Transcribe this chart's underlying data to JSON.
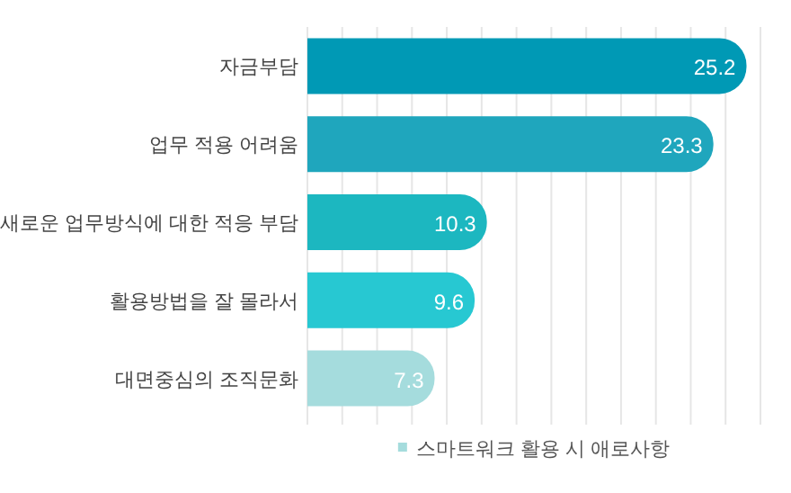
{
  "chart_data": {
    "type": "bar",
    "orientation": "horizontal",
    "categories": [
      "자금부담",
      "업무 적용 어려움",
      "새로운 업무방식에 대한 적응 부담",
      "활용방법을 잘 몰라서",
      "대면중심의 조직문화"
    ],
    "series": [
      {
        "name": "스마트워크 활용 시 애로사항",
        "color": "#a5dcdd",
        "colors": [
          "#0099b5",
          "#1fa6bd",
          "#1cb7c0",
          "#27c8d2",
          "#a5dcdd"
        ],
        "values": [
          25.2,
          23.3,
          10.3,
          9.6,
          7.3
        ]
      }
    ],
    "xlim": [
      0,
      26
    ],
    "xticks": [
      {
        "value": 0,
        "label": null
      },
      {
        "value": 2,
        "label": null
      },
      {
        "value": 4,
        "label": null
      },
      {
        "value": 6,
        "label": null
      },
      {
        "value": 8,
        "label": null
      },
      {
        "value": 10,
        "label": null
      },
      {
        "value": 12,
        "label": null
      },
      {
        "value": 14,
        "label": null
      },
      {
        "value": 16,
        "label": null
      },
      {
        "value": 18,
        "label": null
      },
      {
        "value": 20,
        "label": null
      },
      {
        "value": 22,
        "label": null
      },
      {
        "value": 24,
        "label": null
      },
      {
        "value": 26,
        "label": null
      }
    ],
    "tick_labels": "y",
    "grid": "x",
    "data_labels": true,
    "legend": "bottom"
  }
}
